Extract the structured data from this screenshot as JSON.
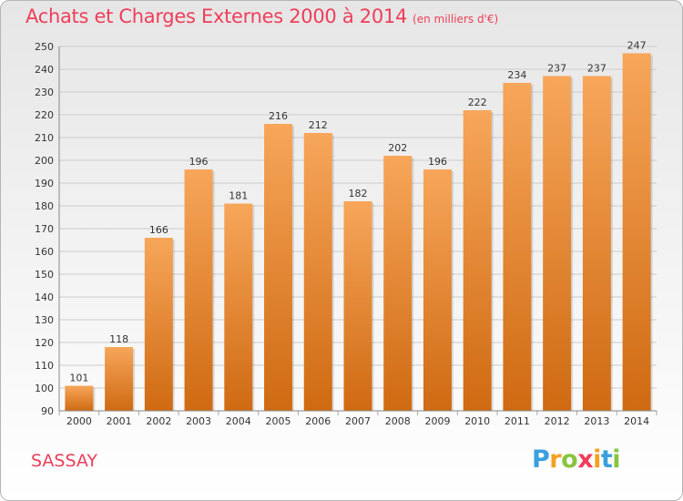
{
  "title": "Achats et Charges Externes 2000 à 2014",
  "subtitle": "(en milliers d'€)",
  "commune": "SASSAY",
  "logo": {
    "text": "Proxiti",
    "colors": [
      "#3aa0dd",
      "#f4a020",
      "#8ac43f",
      "#ef3e5a",
      "#f4a020",
      "#3aa0dd",
      "#8ac43f"
    ]
  },
  "colors": {
    "bar_top": "#f7a65a",
    "bar_bottom": "#cf6a12",
    "title": "#ef3e5a",
    "grid": "#cccccc"
  },
  "chart_data": {
    "type": "bar",
    "categories": [
      "2000",
      "2001",
      "2002",
      "2003",
      "2004",
      "2005",
      "2006",
      "2007",
      "2008",
      "2009",
      "2010",
      "2011",
      "2012",
      "2013",
      "2014"
    ],
    "values": [
      101,
      118,
      166,
      196,
      181,
      216,
      212,
      182,
      202,
      196,
      222,
      234,
      237,
      237,
      247
    ],
    "ylim": [
      90,
      250
    ],
    "yticks": [
      90,
      100,
      110,
      120,
      130,
      140,
      150,
      160,
      170,
      180,
      190,
      200,
      210,
      220,
      230,
      240,
      250
    ],
    "grid": true
  }
}
